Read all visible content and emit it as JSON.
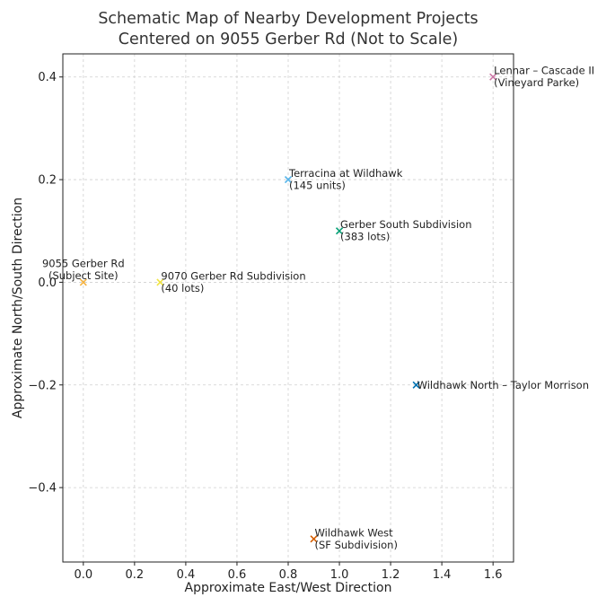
{
  "chart_data": {
    "type": "scatter",
    "title_lines": [
      "Schematic Map of Nearby Development Projects",
      "Centered on 9055 Gerber Rd (Not to Scale)"
    ],
    "xlabel": "Approximate East/West Direction",
    "ylabel": "Approximate North/South Direction",
    "xlim": [
      -0.08,
      1.68
    ],
    "ylim": [
      -0.545,
      0.445
    ],
    "xticks": [
      0.0,
      0.2,
      0.4,
      0.6,
      0.8,
      1.0,
      1.2,
      1.4,
      1.6
    ],
    "xtick_labels": [
      "0.0",
      "0.2",
      "0.4",
      "0.6",
      "0.8",
      "1.0",
      "1.2",
      "1.4",
      "1.6"
    ],
    "yticks": [
      -0.4,
      -0.2,
      0.0,
      0.2,
      0.4
    ],
    "ytick_labels": [
      "−0.4",
      "−0.2",
      "0.0",
      "0.2",
      "0.4"
    ],
    "grid": true,
    "marker": "x",
    "points": [
      {
        "x": 0.0,
        "y": 0.0,
        "color": "#f5b342",
        "label_lines": [
          "9055 Gerber Rd",
          "(Subject Site)"
        ]
      },
      {
        "x": 0.3,
        "y": 0.0,
        "color": "#f0e442",
        "label_lines": [
          "9070 Gerber Rd Subdivision",
          "(40 lots)"
        ]
      },
      {
        "x": 0.8,
        "y": 0.2,
        "color": "#56b4e9",
        "label_lines": [
          "Terracina at Wildhawk",
          "(145 units)"
        ]
      },
      {
        "x": 1.0,
        "y": 0.1,
        "color": "#009e73",
        "label_lines": [
          "Gerber South Subdivision",
          "(383 lots)"
        ]
      },
      {
        "x": 1.6,
        "y": 0.4,
        "color": "#cc79a7",
        "label_lines": [
          "Lennar – Cascade II",
          "(Vineyard Parke)"
        ]
      },
      {
        "x": 1.3,
        "y": -0.2,
        "color": "#0072b2",
        "label_lines": [
          "Wildhawk North – Taylor Morrison"
        ]
      },
      {
        "x": 0.9,
        "y": -0.5,
        "color": "#d55e00",
        "label_lines": [
          "Wildhawk West",
          "(SF Subdivision)"
        ]
      }
    ]
  }
}
